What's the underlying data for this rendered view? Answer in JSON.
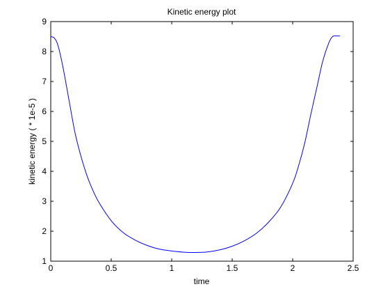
{
  "chart_data": {
    "type": "line",
    "title": "Kinetic energy plot",
    "xlabel": "time",
    "ylabel": "kinetic energy ( * 1e-5 )",
    "xlim": [
      0,
      2.5
    ],
    "ylim": [
      1,
      9
    ],
    "xticks": [
      0,
      0.5,
      1,
      1.5,
      2,
      2.5
    ],
    "yticks": [
      1,
      2,
      3,
      4,
      5,
      6,
      7,
      8,
      9
    ],
    "xtick_labels": [
      "0",
      "0.5",
      "1",
      "1.5",
      "2",
      "2.5"
    ],
    "ytick_labels": [
      "1",
      "2",
      "3",
      "4",
      "5",
      "6",
      "7",
      "8",
      "9"
    ],
    "grid": false,
    "series": [
      {
        "color": "#0000ff",
        "x": [
          0,
          0.03,
          0.06,
          0.1,
          0.15,
          0.2,
          0.25,
          0.3,
          0.35,
          0.4,
          0.5,
          0.6,
          0.7,
          0.8,
          0.9,
          1.0,
          1.1,
          1.2,
          1.3,
          1.4,
          1.5,
          1.6,
          1.7,
          1.8,
          1.9,
          2.0,
          2.05,
          2.1,
          2.15,
          2.2,
          2.25,
          2.3,
          2.33,
          2.36,
          2.39
        ],
        "y": [
          8.5,
          8.45,
          8.2,
          7.5,
          6.4,
          5.3,
          4.5,
          3.85,
          3.35,
          2.95,
          2.35,
          1.95,
          1.7,
          1.52,
          1.4,
          1.34,
          1.3,
          1.29,
          1.31,
          1.38,
          1.5,
          1.68,
          1.93,
          2.3,
          2.8,
          3.6,
          4.2,
          4.95,
          5.9,
          6.8,
          7.7,
          8.3,
          8.5,
          8.52,
          8.52
        ]
      }
    ]
  }
}
